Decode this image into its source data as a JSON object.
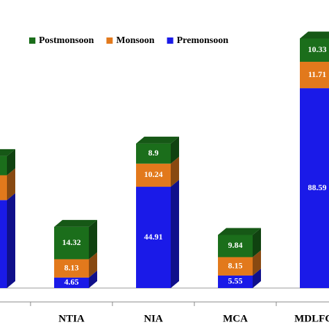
{
  "chart_data": {
    "type": "bar3d-stacked",
    "categories": [
      null,
      "NTIA",
      "NIA",
      "MCA",
      "MDLFCA"
    ],
    "series": [
      {
        "name": "Postmonsoon",
        "color": "#1b6e1b",
        "values": [
          8.5,
          14.32,
          8.9,
          9.84,
          10.33
        ]
      },
      {
        "name": "Monsoon",
        "color": "#e2791c",
        "values": [
          11,
          8.13,
          10.24,
          8.15,
          11.71
        ]
      },
      {
        "name": "Premonsoon",
        "color": "#1a1ae8",
        "values": [
          39,
          4.65,
          44.91,
          5.55,
          88.59
        ]
      }
    ],
    "value_labels_shown": [
      false,
      true,
      true,
      true,
      true
    ]
  }
}
